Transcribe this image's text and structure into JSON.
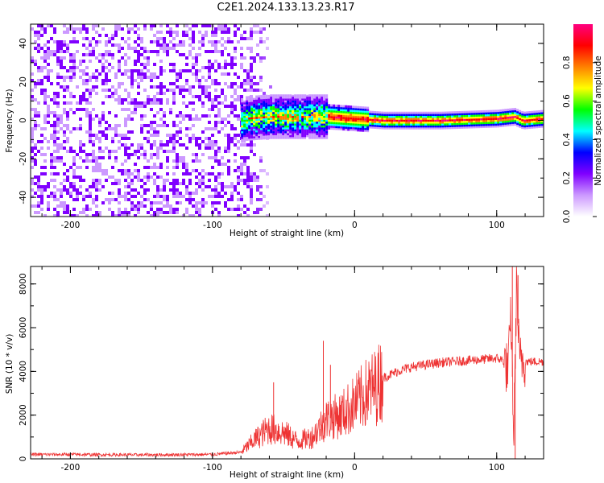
{
  "title": "C2E1.2024.133.13.23.R17",
  "chart_data": [
    {
      "type": "heatmap",
      "xlabel": "Height of straight line (km)",
      "ylabel": "Frequency (Hz)",
      "xlim": [
        -228,
        133
      ],
      "ylim": [
        -50,
        50
      ],
      "xticks": [
        -200,
        -100,
        0,
        100
      ],
      "yticks": [
        -40,
        -20,
        0,
        20,
        40
      ],
      "colorbar": {
        "label": "Normalized spectral amplitude",
        "range": [
          0,
          1
        ],
        "ticks": [
          0.0,
          0.2,
          0.4,
          0.6,
          0.8
        ],
        "colors": [
          "#ffffff",
          "#cc99ff",
          "#8000ff",
          "#0000ff",
          "#00ffff",
          "#00ff00",
          "#ffff00",
          "#ff8000",
          "#ff0000",
          "#ff0080"
        ]
      },
      "noise_region_x": [
        -228,
        -60
      ],
      "signal_centerline": [
        {
          "x": -78,
          "f": 1
        },
        {
          "x": -60,
          "f": 2
        },
        {
          "x": -40,
          "f": 2
        },
        {
          "x": -20,
          "f": 2
        },
        {
          "x": 0,
          "f": 1
        },
        {
          "x": 20,
          "f": 0
        },
        {
          "x": 60,
          "f": 0
        },
        {
          "x": 100,
          "f": 1
        },
        {
          "x": 112,
          "f": 2
        },
        {
          "x": 118,
          "f": 0
        },
        {
          "x": 133,
          "f": 1
        }
      ]
    },
    {
      "type": "line",
      "xlabel": "Height of straight line (km)",
      "ylabel": "SNR (10 * v/v)",
      "xlim": [
        -228,
        133
      ],
      "ylim": [
        0,
        8800
      ],
      "xticks": [
        -200,
        -100,
        0,
        100
      ],
      "yticks": [
        0,
        2000,
        4000,
        6000,
        8000
      ],
      "color": "#ee3333",
      "x": [
        -228,
        -200,
        -150,
        -100,
        -80,
        -70,
        -60,
        -50,
        -40,
        -30,
        -20,
        -10,
        0,
        10,
        15,
        20,
        30,
        40,
        50,
        60,
        70,
        80,
        90,
        100,
        105,
        108,
        110,
        112,
        114,
        116,
        118,
        120,
        125,
        133
      ],
      "y": [
        200,
        200,
        180,
        200,
        300,
        900,
        1400,
        1200,
        800,
        1000,
        1800,
        2000,
        2500,
        3100,
        3300,
        3700,
        4000,
        4200,
        4300,
        4400,
        4450,
        4500,
        4550,
        4600,
        4500,
        4000,
        6500,
        1000,
        8000,
        4400,
        4600,
        4450,
        4450,
        4450
      ],
      "peaks": [
        {
          "x": -57,
          "y": 3500
        },
        {
          "x": -22,
          "y": 5400
        },
        {
          "x": -17,
          "y": 4300
        },
        {
          "x": 13,
          "y": 3700
        },
        {
          "x": 111,
          "y": 8800
        },
        {
          "x": 113,
          "y": 0
        },
        {
          "x": 115,
          "y": 8400
        }
      ]
    }
  ]
}
